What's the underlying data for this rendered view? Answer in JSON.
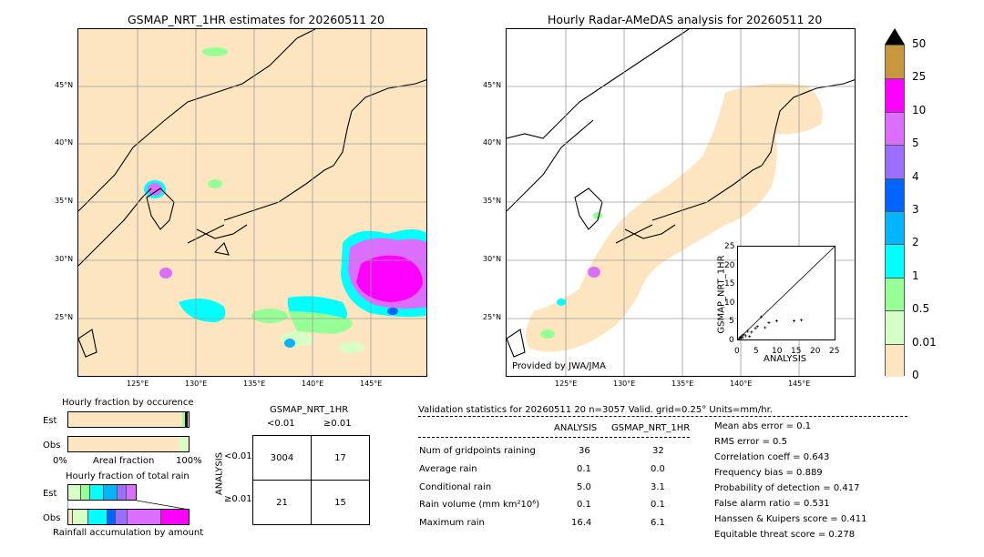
{
  "left_map": {
    "title": "GSMAP_NRT_1HR estimates for 20260511 20",
    "lon_ticks": [
      "125°E",
      "130°E",
      "135°E",
      "140°E",
      "145°E"
    ],
    "lat_ticks": [
      "45°N",
      "40°N",
      "35°N",
      "30°N",
      "25°N"
    ]
  },
  "right_map": {
    "title": "Hourly Radar-AMeDAS analysis for 20260511 20",
    "lon_ticks": [
      "125°E",
      "130°E",
      "135°E",
      "140°E",
      "145°E"
    ],
    "lat_ticks": [
      "45°N",
      "40°N",
      "35°N",
      "30°N",
      "25°N"
    ],
    "credit": "Provided by JWA/JMA"
  },
  "scatter": {
    "xlabel": "ANALYSIS",
    "ylabel": "GSMAP_NRT_1HR",
    "ticks": [
      "0",
      "5",
      "10",
      "15",
      "20",
      "25"
    ]
  },
  "colorbar": {
    "labels": [
      "50",
      "25",
      "10",
      "5",
      "4",
      "3",
      "2",
      "1",
      "0.5",
      "0.01",
      "0"
    ],
    "colors": [
      "#c8963c",
      "#ff00ff",
      "#dc6eff",
      "#9b6eff",
      "#0064ff",
      "#00b4ff",
      "#00ffff",
      "#96ff96",
      "#d6ffc8",
      "#fde6bf"
    ]
  },
  "fraction_occurrence": {
    "title": "Hourly fraction by occurence",
    "row_est": "Est",
    "row_obs": "Obs",
    "axis_left": "0%",
    "axis_mid": "Areal fraction",
    "axis_right": "100%"
  },
  "fraction_total": {
    "title": "Hourly fraction of total rain",
    "row_est": "Est",
    "row_obs": "Obs",
    "footer": "Rainfall accumulation by amount"
  },
  "contingency": {
    "title": "GSMAP_NRT_1HR",
    "col_lt": "<0.01",
    "col_ge": "≥0.01",
    "row_axis": "ANALYSIS",
    "row_lt": "<0.01",
    "row_ge": "≥0.01",
    "cells": [
      "3004",
      "17",
      "21",
      "15"
    ]
  },
  "validation": {
    "header": "Validation statistics for 20260511 20  n=3057 Valid. grid=0.25° Units=mm/hr.",
    "col_analysis": "ANALYSIS",
    "col_gsmap": "GSMAP_NRT_1HR",
    "rows": [
      {
        "label": "Num of gridpoints raining",
        "analysis": "36",
        "gsmap": "32"
      },
      {
        "label": "Average rain",
        "analysis": "0.1",
        "gsmap": "0.0"
      },
      {
        "label": "Conditional rain",
        "analysis": "5.0",
        "gsmap": "3.1"
      },
      {
        "label": "Rain volume (mm km²10⁶)",
        "analysis": "0.1",
        "gsmap": "0.1"
      },
      {
        "label": "Maximum rain",
        "analysis": "16.4",
        "gsmap": "6.1"
      }
    ],
    "scores": [
      "Mean abs error =    0.1",
      "RMS error =    0.5",
      "Correlation coeff =  0.643",
      "Frequency bias =  0.889",
      "Probability of detection =  0.417",
      "False alarm ratio =  0.531",
      "Hanssen & Kuipers score =  0.411",
      "Equitable threat score =  0.278"
    ]
  },
  "chart_data": {
    "type": "scatter",
    "title": "",
    "xlabel": "ANALYSIS",
    "ylabel": "GSMAP_NRT_1HR",
    "xlim": [
      0,
      25
    ],
    "ylim": [
      0,
      25
    ],
    "points": [
      {
        "x": 0.3,
        "y": 0.2
      },
      {
        "x": 0.5,
        "y": 0.6
      },
      {
        "x": 0.8,
        "y": 0.4
      },
      {
        "x": 1.0,
        "y": 1.0
      },
      {
        "x": 1.2,
        "y": 0.5
      },
      {
        "x": 1.5,
        "y": 1.3
      },
      {
        "x": 2.0,
        "y": 1.0
      },
      {
        "x": 2.5,
        "y": 2.2
      },
      {
        "x": 3.0,
        "y": 0.8
      },
      {
        "x": 3.5,
        "y": 2.0
      },
      {
        "x": 4.5,
        "y": 3.0
      },
      {
        "x": 5.0,
        "y": 3.5
      },
      {
        "x": 6.0,
        "y": 6.1
      },
      {
        "x": 7.0,
        "y": 3.2
      },
      {
        "x": 8.0,
        "y": 4.5
      },
      {
        "x": 10.0,
        "y": 5.0
      },
      {
        "x": 14.5,
        "y": 5.0
      },
      {
        "x": 16.4,
        "y": 5.2
      }
    ],
    "diagonal": true
  }
}
